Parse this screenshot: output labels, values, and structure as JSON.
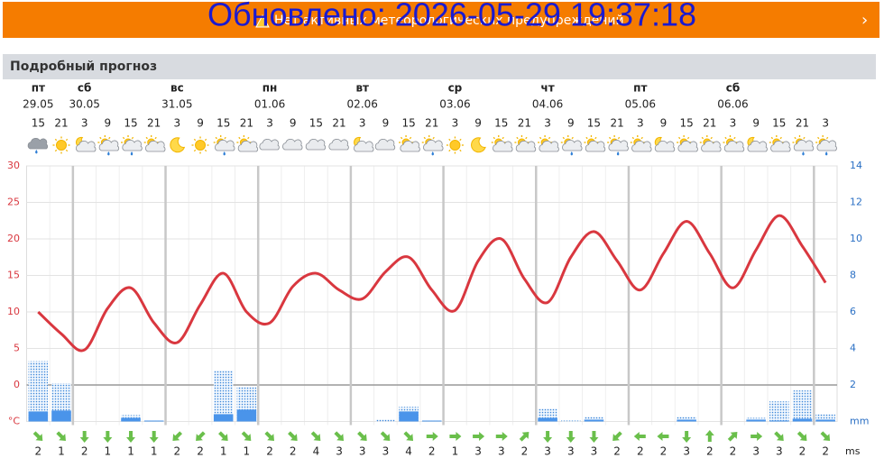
{
  "banner": {
    "text": "Нет активных метеорологических предупреждений",
    "overlay": "Обновлено: 2026-05-29 19:37:18"
  },
  "section_title": "Подробный прогноз",
  "chart_data": {
    "type": "line",
    "categories": [
      15,
      21,
      3,
      9,
      15,
      21,
      3,
      9,
      15,
      21,
      3,
      9,
      15,
      21,
      3,
      9,
      15,
      21,
      3,
      9,
      15,
      21,
      3,
      9,
      15,
      21,
      3,
      9,
      15,
      21,
      3,
      9,
      15,
      21,
      3
    ],
    "day_names": [
      "пт",
      null,
      "сб",
      null,
      null,
      null,
      "вс",
      null,
      null,
      null,
      "пн",
      null,
      null,
      null,
      "вт",
      null,
      null,
      null,
      "ср",
      null,
      null,
      null,
      "чт",
      null,
      null,
      null,
      "пт",
      null,
      null,
      null,
      "сб",
      null,
      null,
      null,
      null
    ],
    "day_dates": [
      "29.05",
      null,
      "30.05",
      null,
      null,
      null,
      "31.05",
      null,
      null,
      null,
      "01.06",
      null,
      null,
      null,
      "02.06",
      null,
      null,
      null,
      "03.06",
      null,
      null,
      null,
      "04.06",
      null,
      null,
      null,
      "05.06",
      null,
      null,
      null,
      "06.06",
      null,
      null,
      null,
      null
    ],
    "icons": [
      "r",
      "s",
      "pn",
      "pr",
      "pr",
      "p",
      "m",
      "s",
      "pr",
      "p",
      "c",
      "c",
      "c",
      "c",
      "pn",
      "c",
      "p",
      "pr",
      "s",
      "m",
      "p",
      "p",
      "p",
      "pr",
      "p",
      "pr",
      "p",
      "pn",
      "p",
      "p",
      "p",
      "pn",
      "p",
      "pr",
      "pr"
    ],
    "series": [
      {
        "color": "#d9373f",
        "values": [
          10,
          7,
          4.8,
          10.5,
          13.3,
          8.5,
          5.8,
          11,
          15.3,
          10,
          8.5,
          13.5,
          15.3,
          13,
          11.8,
          15.5,
          17.5,
          13,
          10.2,
          17,
          20,
          14.5,
          11.3,
          17.5,
          21,
          17,
          13,
          18,
          22.4,
          18,
          13.3,
          18.5,
          23.2,
          19,
          14
        ]
      },
      {
        "color": "#3a86d8",
        "axis": "y2",
        "style": "dotted",
        "values": [
          3.3,
          2.1,
          0,
          0,
          0.35,
          0.05,
          0,
          0,
          2.8,
          1.9,
          0,
          0,
          0,
          0,
          0,
          0.1,
          0.8,
          0.05,
          0,
          0,
          0,
          0,
          0.7,
          0.05,
          0.25,
          0,
          0,
          0,
          0.25,
          0,
          0,
          0.2,
          1.1,
          1.7,
          0.4
        ]
      },
      {
        "color": "#4a94ea",
        "axis": "y2",
        "style": "solid",
        "values": [
          0.55,
          0.6,
          0,
          0,
          0.2,
          0.05,
          0,
          0,
          0.4,
          0.65,
          0,
          0,
          0,
          0,
          0,
          0,
          0.55,
          0.05,
          0,
          0,
          0,
          0,
          0.2,
          0,
          0.1,
          0,
          0,
          0,
          0.1,
          0,
          0,
          0.1,
          0.05,
          0.15,
          0.1
        ]
      }
    ],
    "ylim": [
      -5,
      30
    ],
    "yticks": [
      {
        "value": -5,
        "label": "°C"
      },
      0,
      5,
      10,
      15,
      20,
      25,
      30
    ],
    "y2lim": [
      0,
      14
    ],
    "y2ticks": [
      {
        "value": 0,
        "label": "mm"
      },
      2,
      4,
      6,
      8,
      10,
      12,
      14
    ],
    "wind_speed": [
      2,
      1,
      2,
      1,
      1,
      1,
      2,
      2,
      1,
      1,
      2,
      2,
      4,
      3,
      3,
      3,
      4,
      2,
      1,
      3,
      3,
      2,
      3,
      3,
      3,
      2,
      2,
      2,
      3,
      2,
      2,
      3,
      3,
      2,
      2
    ],
    "wind_dir": [
      45,
      45,
      90,
      90,
      90,
      90,
      135,
      135,
      45,
      45,
      45,
      45,
      45,
      45,
      45,
      45,
      45,
      0,
      0,
      0,
      0,
      315,
      90,
      90,
      90,
      135,
      180,
      180,
      90,
      270,
      315,
      0,
      45,
      45,
      45
    ],
    "wind_unit": "ms",
    "wind_color": "#6abf4b",
    "grid": true
  }
}
